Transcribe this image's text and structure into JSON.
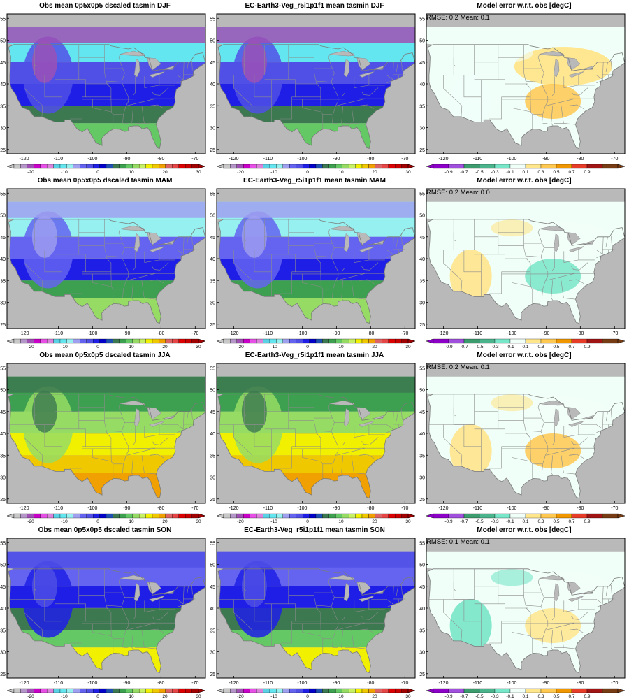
{
  "titles": {
    "obs": "Obs mean 0p5x0p5 dscaled tasmin",
    "model": "EC-Earth3-Veg_r5i1p1f1 mean tasmin",
    "error": "Model error w.r.t. obs [degC]"
  },
  "seasons": [
    "DJF",
    "MAM",
    "JJA",
    "SON"
  ],
  "panels": {
    "obs_DJF": "Obs mean 0p5x0p5 dscaled tasmin DJF",
    "model_DJF": "EC-Earth3-Veg_r5i1p1f1 mean tasmin DJF",
    "error_DJF": "Model error w.r.t. obs [degC]",
    "obs_MAM": "Obs mean 0p5x0p5 dscaled tasmin MAM",
    "model_MAM": "EC-Earth3-Veg_r5i1p1f1 mean tasmin MAM",
    "error_MAM": "Model error w.r.t. obs [degC]",
    "obs_JJA": "Obs mean 0p5x0p5 dscaled tasmin JJA",
    "model_JJA": "EC-Earth3-Veg_r5i1p1f1 mean tasmin JJA",
    "error_JJA": "Model error w.r.t. obs [degC]",
    "obs_SON": "Obs mean 0p5x0p5 dscaled tasmin SON",
    "model_SON": "EC-Earth3-Veg_r5i1p1f1 mean tasmin SON",
    "error_SON": "Model error w.r.t. obs [degC]"
  },
  "stats": {
    "DJF": "RMSE: 0.2  Mean: 0.1",
    "MAM": "RMSE: 0.2  Mean: 0.0",
    "JJA": "RMSE: 0.2  Mean: 0.1",
    "SON": "RMSE: 0.1  Mean: 0.1"
  },
  "axes": {
    "lat_ticks": [
      "25",
      "30",
      "35",
      "40",
      "45",
      "50",
      "55"
    ],
    "lat_values": [
      25,
      30,
      35,
      40,
      45,
      50,
      55
    ],
    "lon_ticks": [
      "-120",
      "-110",
      "-100",
      "-90",
      "-80",
      "-70"
    ],
    "lon_values": [
      -120,
      -110,
      -100,
      -90,
      -80,
      -70
    ],
    "lon_range": [
      -125,
      -67
    ],
    "lat_range": [
      24,
      56
    ]
  },
  "colorbar_temp": {
    "labels": [
      "-20",
      "-10",
      "0",
      "10",
      "20",
      "30"
    ],
    "label_values": [
      -20,
      -10,
      0,
      10,
      20,
      30
    ],
    "min": -25,
    "max": 30,
    "colors": [
      "#c8c8c8",
      "#b496c8",
      "#a050b4",
      "#c800c8",
      "#e650e6",
      "#dc82dc",
      "#5ad2e6",
      "#64e6f0",
      "#96f0f0",
      "#a0a0f0",
      "#6464f0",
      "#5050e6",
      "#1e1ee6",
      "#0000c8",
      "#1e50b4",
      "#3c7850",
      "#3ca050",
      "#64c864",
      "#96dc64",
      "#c8f064",
      "#f0f000",
      "#f0c800",
      "#f0a000",
      "#dc6464",
      "#e64646",
      "#dc0000",
      "#c80000",
      "#a00000"
    ]
  },
  "colorbar_err": {
    "labels": [
      "-0.9",
      "-0.7",
      "-0.5",
      "-0.3",
      "-0.1",
      "0.1",
      "0.3",
      "0.5",
      "0.7",
      "0.9"
    ],
    "colors": [
      "#8c00c8",
      "#a050dc",
      "#3c9c6e",
      "#4cb48c",
      "#78e6c8",
      "#f0fff8",
      "#ffe68c",
      "#ffc850",
      "#f09600",
      "#e63c28",
      "#a01414",
      "#783c14"
    ]
  },
  "map_colors": {
    "land_fill": "#f0fff8",
    "ocean": "#b9b9b9",
    "state_lines": "#8c8c8c"
  },
  "zones": {
    "DJF": {
      "obs": [
        "#64e6f0",
        "#5050e6",
        "#1e1ee6",
        "#3c7850",
        "#64c864"
      ],
      "north": "#a050b4",
      "err": [
        "#f0fff8",
        "#ffe68c",
        "#ffc850"
      ]
    },
    "MAM": {
      "obs": [
        "#96f0f0",
        "#6464f0",
        "#1e1ee6",
        "#3ca050",
        "#96dc64"
      ],
      "north": "#a0a0f0",
      "err": [
        "#ffe68c",
        "#f0fff8",
        "#78e6c8"
      ]
    },
    "JJA": {
      "obs": [
        "#3ca050",
        "#96dc64",
        "#f0f000",
        "#f0c800",
        "#f0a000"
      ],
      "north": "#3c7850",
      "err": [
        "#ffe68c",
        "#f0fff8",
        "#ffc850"
      ]
    },
    "SON": {
      "obs": [
        "#6464f0",
        "#1e1ee6",
        "#3c7850",
        "#64c864",
        "#f0f000"
      ],
      "north": "#5050e6",
      "err": [
        "#78e6c8",
        "#f0fff8",
        "#ffe68c"
      ]
    }
  }
}
